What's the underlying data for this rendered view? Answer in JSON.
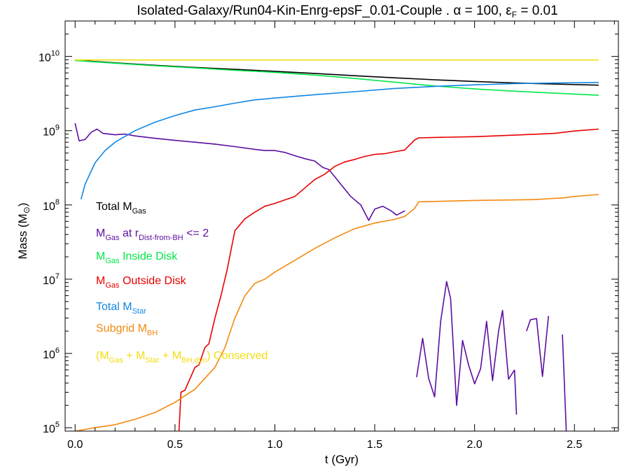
{
  "chart_data": {
    "type": "line",
    "title": {
      "main": "Isolated-Galaxy/Run04-Kin-Enrg-epsF_0.01-Couple . ",
      "alpha_symbol": "α",
      "alpha_value": " = 100, ",
      "eps_symbol": "ε",
      "eps_sub": "F",
      "eps_value": " = 0.01"
    },
    "xlabel": "t   (Gyr)",
    "ylabel": {
      "text": "Mass",
      "unit_open": "(M",
      "unit_sub": "⊙",
      "unit_close": ")"
    },
    "xlim": [
      -0.05,
      2.72
    ],
    "ylim": [
      90000,
      30000000000
    ],
    "yscale": "log",
    "x_ticks": [
      {
        "value": 0.0,
        "label": "0.0"
      },
      {
        "value": 0.5,
        "label": "0.5"
      },
      {
        "value": 1.0,
        "label": "1.0"
      },
      {
        "value": 1.5,
        "label": "1.5"
      },
      {
        "value": 2.0,
        "label": "2.0"
      },
      {
        "value": 2.5,
        "label": "2.5"
      }
    ],
    "x_minor_step": 0.1,
    "y_ticks": [
      {
        "value": 100000,
        "base": "10",
        "exp": "5"
      },
      {
        "value": 1000000,
        "base": "10",
        "exp": "6"
      },
      {
        "value": 10000000,
        "base": "10",
        "exp": "7"
      },
      {
        "value": 100000000,
        "base": "10",
        "exp": "8"
      },
      {
        "value": 1000000000,
        "base": "10",
        "exp": "9"
      },
      {
        "value": 10000000000,
        "base": "10",
        "exp": "10"
      }
    ],
    "legend_position": "left",
    "series": [
      {
        "legend": [
          {
            "t": "Total M"
          },
          {
            "t": "Gas",
            "sub": true
          }
        ],
        "color": "#000000",
        "x": [
          0.0,
          0.2,
          0.4,
          0.6,
          0.8,
          1.0,
          1.2,
          1.4,
          1.6,
          1.8,
          2.0,
          2.2,
          2.4,
          2.62
        ],
        "y": [
          8900000000.0,
          8200000000.0,
          7600000000.0,
          7100000000.0,
          6700000000.0,
          6300000000.0,
          5900000000.0,
          5500000000.0,
          5150000000.0,
          4850000000.0,
          4600000000.0,
          4400000000.0,
          4250000000.0,
          4100000000.0
        ]
      },
      {
        "legend": [
          {
            "t": "M"
          },
          {
            "t": "Gas",
            "sub": true
          },
          {
            "t": " at r"
          },
          {
            "t": "Dist-from-BH",
            "sub": true
          },
          {
            "t": " <= 2"
          }
        ],
        "color": "#5b0ea1",
        "x": [
          0.0,
          0.02,
          0.05,
          0.08,
          0.11,
          0.14,
          0.2,
          0.25,
          0.3,
          0.35,
          0.4,
          0.5,
          0.6,
          0.7,
          0.8,
          0.9,
          0.95,
          1.0,
          1.05,
          1.1,
          1.15,
          1.2,
          1.24,
          1.27,
          1.3,
          1.33,
          1.38,
          1.43,
          1.47,
          1.5,
          1.54,
          1.58,
          1.61,
          1.65
        ],
        "y": [
          1250000000.0,
          730000000.0,
          760000000.0,
          950000000.0,
          1050000000.0,
          920000000.0,
          880000000.0,
          900000000.0,
          850000000.0,
          820000000.0,
          790000000.0,
          740000000.0,
          700000000.0,
          660000000.0,
          610000000.0,
          560000000.0,
          540000000.0,
          540000000.0,
          510000000.0,
          460000000.0,
          420000000.0,
          390000000.0,
          320000000.0,
          300000000.0,
          240000000.0,
          190000000.0,
          130000000.0,
          100000000.0,
          62000000.0,
          88000000.0,
          96000000.0,
          84000000.0,
          73000000.0,
          83000000.0
        ]
      },
      {
        "legend": [
          {
            "t": "M"
          },
          {
            "t": "Gas",
            "sub": true
          },
          {
            "t": " Inside Disk"
          }
        ],
        "color": "#00e84a",
        "x": [
          0.0,
          0.2,
          0.4,
          0.6,
          0.8,
          1.0,
          1.2,
          1.4,
          1.6,
          1.8,
          2.0,
          2.2,
          2.4,
          2.62
        ],
        "y": [
          8800000000.0,
          8100000000.0,
          7500000000.0,
          7000000000.0,
          6500000000.0,
          6100000000.0,
          5600000000.0,
          5050000000.0,
          4500000000.0,
          4000000000.0,
          3650000000.0,
          3400000000.0,
          3200000000.0,
          3000000000.0
        ]
      },
      {
        "legend": [
          {
            "t": "M"
          },
          {
            "t": "Gas",
            "sub": true
          },
          {
            "t": " Outside Disk"
          }
        ],
        "color": "#e80000",
        "x": [
          0.52,
          0.53,
          0.55,
          0.6,
          0.62,
          0.65,
          0.67,
          0.7,
          0.73,
          0.76,
          0.8,
          0.85,
          0.9,
          0.95,
          1.0,
          1.1,
          1.2,
          1.25,
          1.3,
          1.35,
          1.4,
          1.45,
          1.5,
          1.55,
          1.6,
          1.65,
          1.7,
          1.72,
          1.8,
          2.0,
          2.2,
          2.4,
          2.5,
          2.62
        ],
        "y": [
          90000.0,
          300000.0,
          320000.0,
          650000.0,
          700000.0,
          1200000.0,
          1350000.0,
          3000000.0,
          6000000.0,
          13000000.0,
          45000000.0,
          65000000.0,
          80000000.0,
          96000000.0,
          105000000.0,
          130000000.0,
          220000000.0,
          260000000.0,
          330000000.0,
          380000000.0,
          410000000.0,
          450000000.0,
          480000000.0,
          490000000.0,
          520000000.0,
          550000000.0,
          750000000.0,
          800000000.0,
          810000000.0,
          830000000.0,
          870000000.0,
          920000000.0,
          990000000.0,
          1050000000.0
        ]
      },
      {
        "legend": [
          {
            "t": "Total M"
          },
          {
            "t": "Star",
            "sub": true
          }
        ],
        "color": "#0f86e4",
        "x": [
          0.03,
          0.05,
          0.1,
          0.15,
          0.2,
          0.3,
          0.4,
          0.5,
          0.6,
          0.7,
          0.8,
          0.9,
          1.0,
          1.2,
          1.4,
          1.6,
          1.8,
          2.0,
          2.2,
          2.4,
          2.62
        ],
        "y": [
          120000000.0,
          190000000.0,
          370000000.0,
          540000000.0,
          700000000.0,
          1000000000.0,
          1300000000.0,
          1600000000.0,
          1900000000.0,
          2100000000.0,
          2350000000.0,
          2600000000.0,
          2750000000.0,
          3050000000.0,
          3350000000.0,
          3700000000.0,
          3950000000.0,
          4150000000.0,
          4300000000.0,
          4400000000.0,
          4450000000.0
        ]
      },
      {
        "legend": [
          {
            "t": "Subgrid M"
          },
          {
            "t": "BH",
            "sub": true
          }
        ],
        "color": "#f28a10",
        "x": [
          0.0,
          0.1,
          0.2,
          0.3,
          0.4,
          0.5,
          0.6,
          0.7,
          0.75,
          0.8,
          0.85,
          0.9,
          0.95,
          1.0,
          1.1,
          1.2,
          1.3,
          1.4,
          1.5,
          1.6,
          1.65,
          1.7,
          1.72,
          2.0,
          2.3,
          2.45,
          2.5,
          2.62
        ],
        "y": [
          90000.0,
          100000.0,
          110000.0,
          130000.0,
          160000.0,
          220000.0,
          330000.0,
          650000.0,
          1200000.0,
          3000000.0,
          6000000.0,
          8800000.0,
          10000000.0,
          12500000.0,
          18000000.0,
          26000000.0,
          36000000.0,
          48000000.0,
          57000000.0,
          64000000.0,
          70000000.0,
          90000000.0,
          110000000.0,
          115000000.0,
          118000000.0,
          125000000.0,
          130000000.0,
          138000000.0
        ]
      },
      {
        "legend": [
          {
            "t": "(M"
          },
          {
            "t": "Gas",
            "sub": true
          },
          {
            "t": " + M"
          },
          {
            "t": "Star",
            "sub": true
          },
          {
            "t": " + M"
          },
          {
            "t": "BH,dyn",
            "sub": true
          },
          {
            "t": ") Conserved"
          }
        ],
        "color": "#f2de10",
        "x": [
          0.0,
          0.5,
          1.0,
          1.5,
          2.0,
          2.62
        ],
        "y": [
          8950000000.0,
          8950000000.0,
          8950000000.0,
          8950000000.0,
          8950000000.0,
          8950000000.0
        ]
      }
    ],
    "extra_segments": [
      {
        "color": "#5b0ea1",
        "x": [
          1.71,
          1.74,
          1.77,
          1.8,
          1.83,
          1.86,
          1.88,
          1.91,
          1.94,
          1.97,
          2.0,
          2.03,
          2.06,
          2.09,
          2.12,
          2.14,
          2.17,
          2.2
        ],
        "y": [
          480000.0,
          1600000.0,
          460000.0,
          260000.0,
          2700000.0,
          9300000.0,
          5500000.0,
          200000.0,
          1500000.0,
          700000.0,
          390000.0,
          620000.0,
          2700000.0,
          430000.0,
          2000000.0,
          3800000.0,
          450000.0,
          600000.0
        ]
      },
      {
        "color": "#5b0ea1",
        "x": [
          2.2,
          2.21
        ],
        "y": [
          600000.0,
          150000.0
        ]
      },
      {
        "color": "#5b0ea1",
        "x": [
          2.26,
          2.28,
          2.31,
          2.34,
          2.37
        ],
        "y": [
          2000000.0,
          2850000.0,
          2950000.0,
          490000.0,
          3200000.0
        ]
      },
      {
        "color": "#5b0ea1",
        "x": [
          2.44,
          2.46
        ],
        "y": [
          1800000.0,
          80000.0
        ]
      }
    ]
  }
}
